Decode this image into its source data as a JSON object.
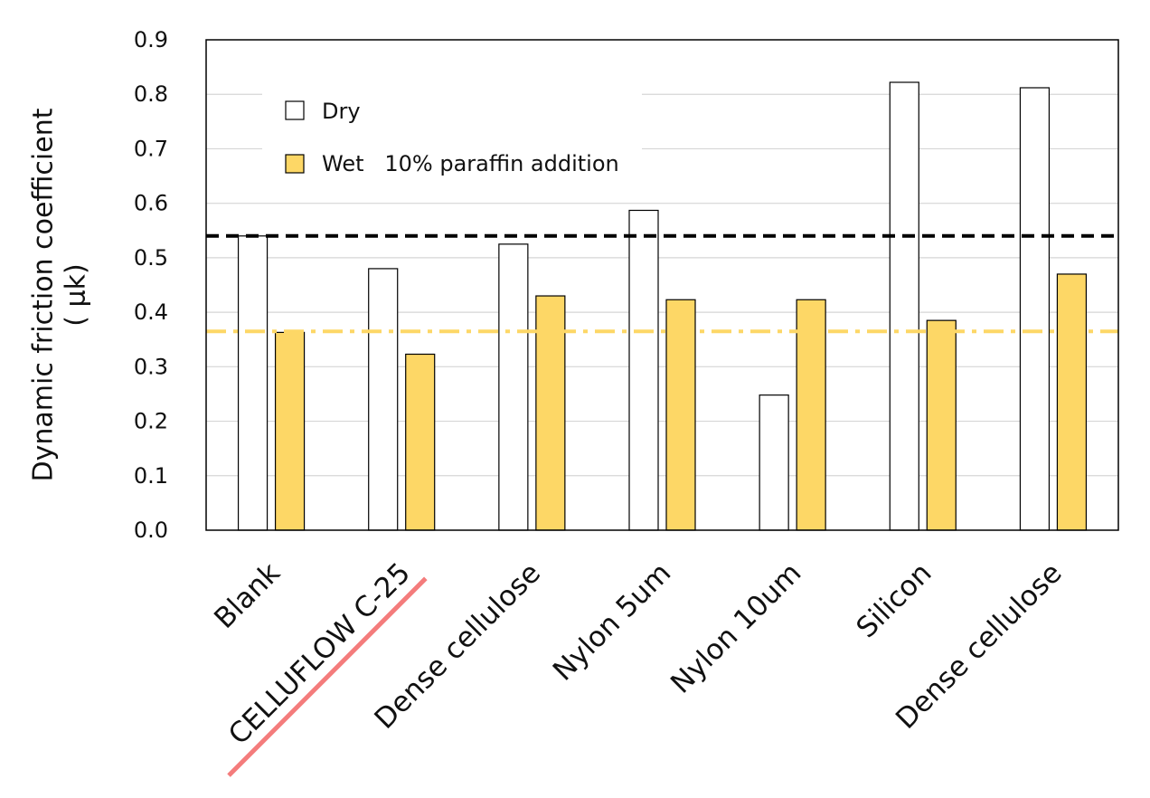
{
  "chart_data": {
    "type": "bar",
    "categories": [
      "Blank",
      "CELLUFLOW C-25",
      "Dense cellulose",
      "Nylon 5um",
      "Nylon 10um",
      "Silicon",
      "Dense cellulose"
    ],
    "series": [
      {
        "name": "Dry",
        "values": [
          0.54,
          0.48,
          0.525,
          0.587,
          0.248,
          0.822,
          0.812
        ],
        "color": "#ffffff"
      },
      {
        "name": "Wet   10% paraffin addition",
        "values": [
          0.363,
          0.323,
          0.43,
          0.423,
          0.423,
          0.385,
          0.47
        ],
        "color": "#FDD766"
      }
    ],
    "ylabel_lines": [
      "Dynamic friction coefficient",
      "( μk)"
    ],
    "ylim": [
      0,
      0.9
    ],
    "yticks": [
      "0.0",
      "0.1",
      "0.2",
      "0.3",
      "0.4",
      "0.5",
      "0.6",
      "0.7",
      "0.8",
      "0.9"
    ],
    "reference_lines": [
      {
        "value": 0.54,
        "style": "dashed",
        "color": "#000000"
      },
      {
        "value": 0.365,
        "style": "dash-dot",
        "color": "#FDD766"
      }
    ],
    "highlighted_category": "CELLUFLOW C-25",
    "highlight_color": "#F47C7C",
    "grid": true,
    "legend_position": "top-left"
  }
}
